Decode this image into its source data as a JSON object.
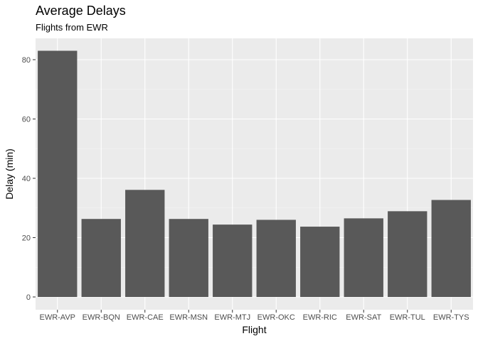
{
  "chart_data": {
    "type": "bar",
    "title": "Average Delays",
    "subtitle": "Flights from EWR",
    "xlabel": "Flight",
    "ylabel": "Delay (min)",
    "categories": [
      "EWR-AVP",
      "EWR-BQN",
      "EWR-CAE",
      "EWR-MSN",
      "EWR-MTJ",
      "EWR-OKC",
      "EWR-RIC",
      "EWR-SAT",
      "EWR-TUL",
      "EWR-TYS"
    ],
    "values": [
      83.0,
      26.3,
      36.1,
      26.3,
      24.4,
      26.0,
      23.7,
      26.5,
      28.9,
      32.7
    ],
    "ylim": [
      0,
      85
    ],
    "yticks": [
      0,
      20,
      40,
      60,
      80
    ],
    "grid": true,
    "legend": "none",
    "colors": {
      "panel_background": "#ebebeb",
      "grid_major": "#ffffff",
      "grid_minor": "#f5f5f5",
      "bar_fill": "#595959",
      "tick_color": "#333333",
      "tick_label_color": "#4d4d4d"
    }
  }
}
